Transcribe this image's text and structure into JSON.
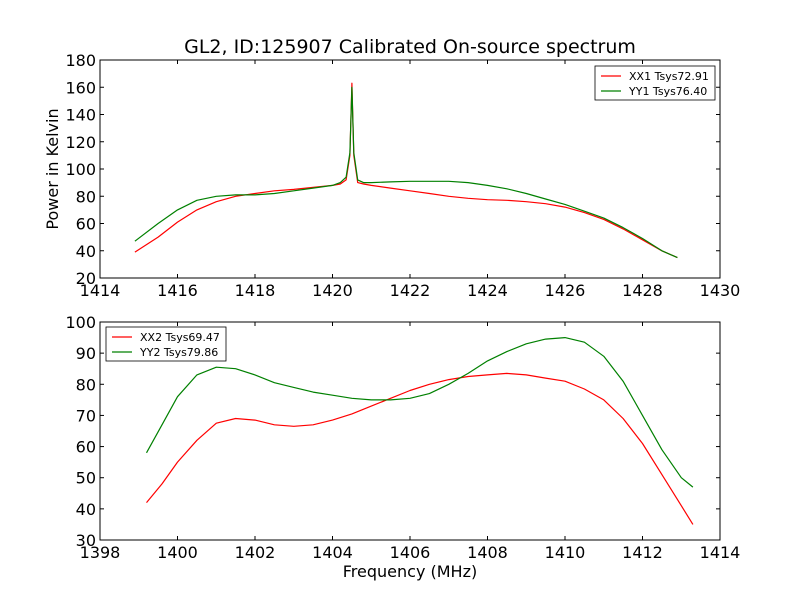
{
  "figure": {
    "title": "GL2, ID:125907 Calibrated On-source spectrum",
    "ylabel": "Power in Kelvin",
    "xlabel": "Frequency (MHz)"
  },
  "chart_data": [
    {
      "type": "line",
      "title": "GL2, ID:125907 Calibrated On-source spectrum",
      "xlabel": "",
      "ylabel": "Power in Kelvin",
      "xlim": [
        1414,
        1430
      ],
      "ylim": [
        20,
        180
      ],
      "xticks": [
        1414,
        1416,
        1418,
        1420,
        1422,
        1424,
        1426,
        1428,
        1430
      ],
      "yticks": [
        20,
        40,
        60,
        80,
        100,
        120,
        140,
        160,
        180
      ],
      "grid": false,
      "legend": "top-right",
      "series": [
        {
          "name": "XX1 Tsys72.91",
          "color": "#ff0000",
          "x": [
            1414.9,
            1415.5,
            1416.0,
            1416.5,
            1417.0,
            1417.5,
            1418.0,
            1418.5,
            1419.0,
            1419.5,
            1420.0,
            1420.2,
            1420.35,
            1420.45,
            1420.5,
            1420.55,
            1420.65,
            1420.8,
            1421.0,
            1421.5,
            1422.0,
            1422.5,
            1423.0,
            1423.5,
            1424.0,
            1424.5,
            1425.0,
            1425.5,
            1426.0,
            1426.5,
            1427.0,
            1427.5,
            1428.0,
            1428.5,
            1428.9
          ],
          "y": [
            39,
            50,
            61,
            70,
            76,
            80,
            82,
            84,
            85,
            86.5,
            88,
            89,
            92,
            110,
            163,
            110,
            90,
            89,
            88,
            86,
            84,
            82,
            80,
            78.5,
            77.5,
            77,
            76,
            74.5,
            72,
            68,
            63,
            56,
            48,
            40,
            35
          ]
        },
        {
          "name": "YY1 Tsys76.40",
          "color": "#008000",
          "x": [
            1414.9,
            1415.5,
            1416.0,
            1416.5,
            1417.0,
            1417.5,
            1418.0,
            1418.5,
            1419.0,
            1419.5,
            1420.0,
            1420.2,
            1420.35,
            1420.45,
            1420.5,
            1420.55,
            1420.65,
            1420.8,
            1421.0,
            1421.5,
            1422.0,
            1422.5,
            1423.0,
            1423.5,
            1424.0,
            1424.5,
            1425.0,
            1425.5,
            1426.0,
            1426.5,
            1427.0,
            1427.5,
            1428.0,
            1428.5,
            1428.9
          ],
          "y": [
            47,
            60,
            70,
            77,
            80,
            81,
            81,
            82,
            84,
            86,
            88,
            90,
            94,
            112,
            160,
            112,
            92,
            90,
            90,
            90.5,
            91,
            91,
            91,
            90,
            88,
            85.5,
            82,
            78,
            74,
            69,
            64,
            57,
            49,
            40,
            35
          ]
        }
      ]
    },
    {
      "type": "line",
      "title": "",
      "xlabel": "Frequency (MHz)",
      "ylabel": "",
      "xlim": [
        1398,
        1414
      ],
      "ylim": [
        30,
        100
      ],
      "xticks": [
        1398,
        1400,
        1402,
        1404,
        1406,
        1408,
        1410,
        1412,
        1414
      ],
      "yticks": [
        30,
        40,
        50,
        60,
        70,
        80,
        90,
        100
      ],
      "grid": false,
      "legend": "top-left",
      "series": [
        {
          "name": "XX2 Tsys69.47",
          "color": "#ff0000",
          "x": [
            1399.2,
            1399.6,
            1400.0,
            1400.5,
            1401.0,
            1401.5,
            1402.0,
            1402.5,
            1403.0,
            1403.5,
            1404.0,
            1404.5,
            1405.0,
            1405.5,
            1406.0,
            1406.5,
            1407.0,
            1407.5,
            1408.0,
            1408.5,
            1409.0,
            1409.5,
            1410.0,
            1410.5,
            1411.0,
            1411.5,
            1412.0,
            1412.5,
            1413.0,
            1413.3
          ],
          "y": [
            42,
            48,
            55,
            62,
            67.5,
            69,
            68.5,
            67,
            66.5,
            67,
            68.5,
            70.5,
            73,
            75.5,
            78,
            80,
            81.5,
            82.5,
            83,
            83.5,
            83,
            82,
            81,
            78.5,
            75,
            69,
            61,
            51,
            41,
            35
          ]
        },
        {
          "name": "YY2 Tsys79.86",
          "color": "#008000",
          "x": [
            1399.2,
            1399.6,
            1400.0,
            1400.5,
            1401.0,
            1401.5,
            1402.0,
            1402.5,
            1403.0,
            1403.5,
            1404.0,
            1404.5,
            1405.0,
            1405.5,
            1406.0,
            1406.5,
            1407.0,
            1407.5,
            1408.0,
            1408.5,
            1409.0,
            1409.5,
            1410.0,
            1410.5,
            1411.0,
            1411.5,
            1412.0,
            1412.5,
            1413.0,
            1413.3
          ],
          "y": [
            58,
            67,
            76,
            83,
            85.5,
            85,
            83,
            80.5,
            79,
            77.5,
            76.5,
            75.5,
            75,
            75,
            75.5,
            77,
            80,
            83.5,
            87.5,
            90.5,
            93,
            94.5,
            95,
            93.5,
            89,
            81,
            70,
            59,
            50,
            47
          ]
        }
      ]
    }
  ]
}
